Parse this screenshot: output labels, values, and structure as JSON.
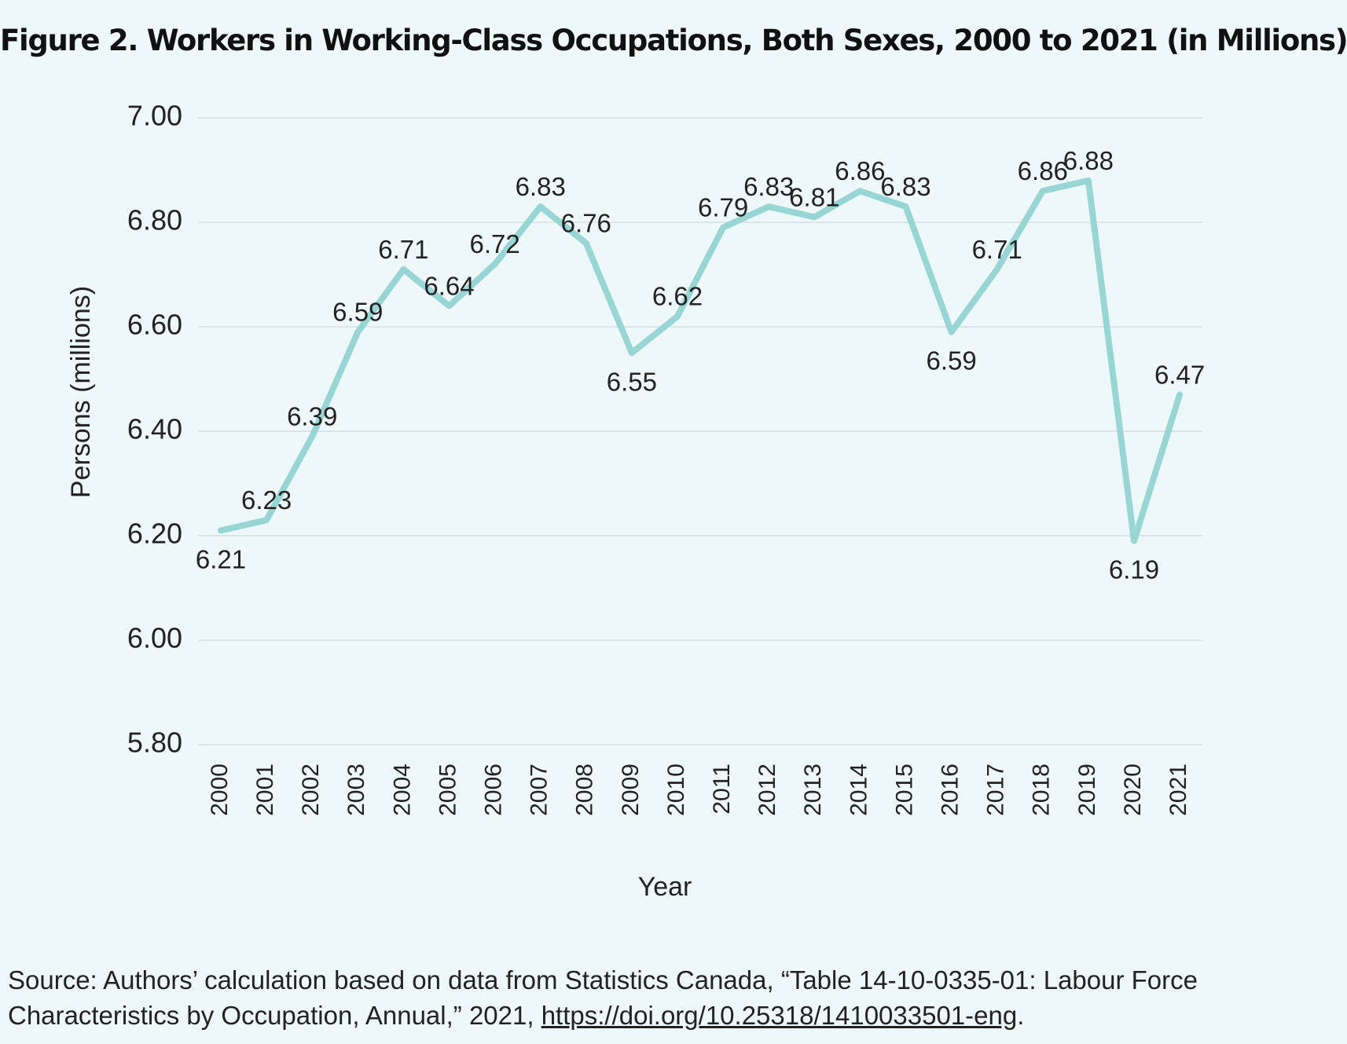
{
  "chart_data": {
    "type": "line",
    "title": "Figure 2. Workers in Working-Class Occupations, Both Sexes, 2000 to 2021 (in Millions)",
    "xlabel": "Year",
    "ylabel": "Persons  (millions)",
    "categories": [
      "2000",
      "2001",
      "2002",
      "2003",
      "2004",
      "2005",
      "2006",
      "2007",
      "2008",
      "2009",
      "2010",
      "2011",
      "2012",
      "2013",
      "2014",
      "2015",
      "2016",
      "2017",
      "2018",
      "2019",
      "2020",
      "2021"
    ],
    "series": [
      {
        "name": "Workers in working-class occupations",
        "values": [
          6.21,
          6.23,
          6.39,
          6.59,
          6.71,
          6.64,
          6.72,
          6.83,
          6.76,
          6.55,
          6.62,
          6.79,
          6.83,
          6.81,
          6.86,
          6.83,
          6.59,
          6.71,
          6.86,
          6.88,
          6.19,
          6.47
        ],
        "data_labels": [
          "6.21",
          "6.23",
          "6.39",
          "6.59",
          "6.71",
          "6.64",
          "6.72",
          "6.83",
          "6.76",
          "6.55",
          "6.62",
          "6.79",
          "6.83",
          "6.81",
          "6.86",
          "6.83",
          "6.59",
          "6.71",
          "6.86",
          "6.88",
          "6.19",
          "6.47"
        ],
        "color": "#98d6d5"
      }
    ],
    "ylim": [
      5.8,
      7.0
    ],
    "yticks": [
      5.8,
      6.0,
      6.2,
      6.4,
      6.6,
      6.8,
      7.0
    ],
    "ytick_labels": [
      "5.80",
      "6.00",
      "6.20",
      "6.40",
      "6.60",
      "6.80",
      "7.00"
    ],
    "grid": true,
    "gridline_color": "#dde6e6",
    "label_placement": [
      "below",
      "above",
      "above",
      "above",
      "above",
      "above",
      "above",
      "above",
      "above",
      "below",
      "above",
      "above",
      "above",
      "above",
      "above",
      "above",
      "below",
      "above",
      "above",
      "above",
      "below",
      "above"
    ]
  },
  "source": {
    "text": "Source: Authors’ calculation based on data from Statistics Canada, “Table 14-10-0335-01: Labour Force Characteristics by Occupation, Annual,” 2021, ",
    "link": "https://doi.org/10.25318/1410033501-eng",
    "end": "."
  }
}
